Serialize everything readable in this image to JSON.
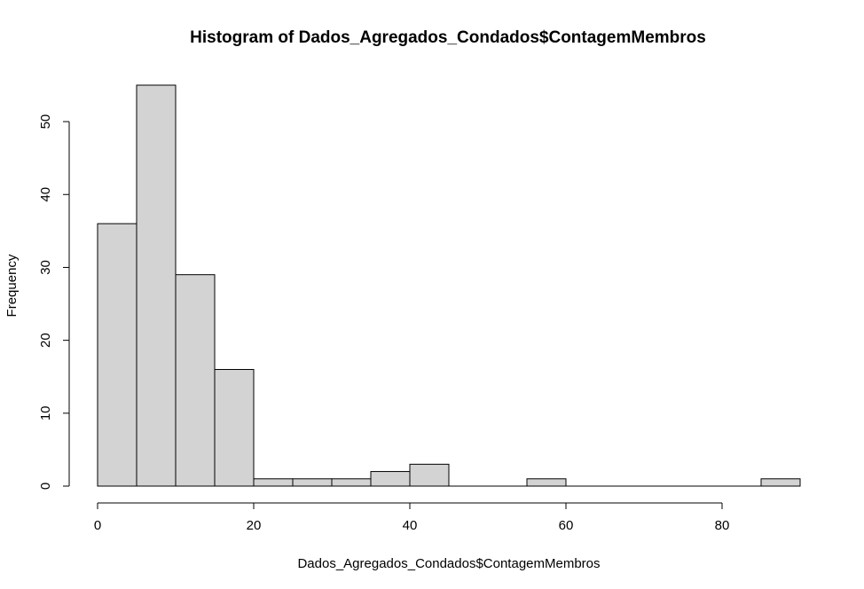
{
  "chart_data": {
    "type": "bar",
    "title": "Histogram of Dados_Agregados_Condados$ContagemMembros",
    "xlabel": "Dados_Agregados_Condados$ContagemMembros",
    "ylabel": "Frequency",
    "bin_width": 5,
    "bins": [
      {
        "x0": 0,
        "x1": 5,
        "count": 36
      },
      {
        "x0": 5,
        "x1": 10,
        "count": 55
      },
      {
        "x0": 10,
        "x1": 15,
        "count": 29
      },
      {
        "x0": 15,
        "x1": 20,
        "count": 16
      },
      {
        "x0": 20,
        "x1": 25,
        "count": 1
      },
      {
        "x0": 25,
        "x1": 30,
        "count": 1
      },
      {
        "x0": 30,
        "x1": 35,
        "count": 1
      },
      {
        "x0": 35,
        "x1": 40,
        "count": 2
      },
      {
        "x0": 40,
        "x1": 45,
        "count": 3
      },
      {
        "x0": 45,
        "x1": 50,
        "count": 0
      },
      {
        "x0": 50,
        "x1": 55,
        "count": 0
      },
      {
        "x0": 55,
        "x1": 60,
        "count": 1
      },
      {
        "x0": 60,
        "x1": 65,
        "count": 0
      },
      {
        "x0": 65,
        "x1": 70,
        "count": 0
      },
      {
        "x0": 70,
        "x1": 75,
        "count": 0
      },
      {
        "x0": 75,
        "x1": 80,
        "count": 0
      },
      {
        "x0": 80,
        "x1": 85,
        "count": 0
      },
      {
        "x0": 85,
        "x1": 90,
        "count": 1
      }
    ],
    "xticks": [
      0,
      20,
      40,
      60,
      80
    ],
    "yticks": [
      0,
      10,
      20,
      30,
      40,
      50
    ],
    "xlim": [
      0,
      90
    ],
    "ylim": [
      0,
      55
    ],
    "grid": false,
    "bar_color": "#d3d3d3"
  }
}
